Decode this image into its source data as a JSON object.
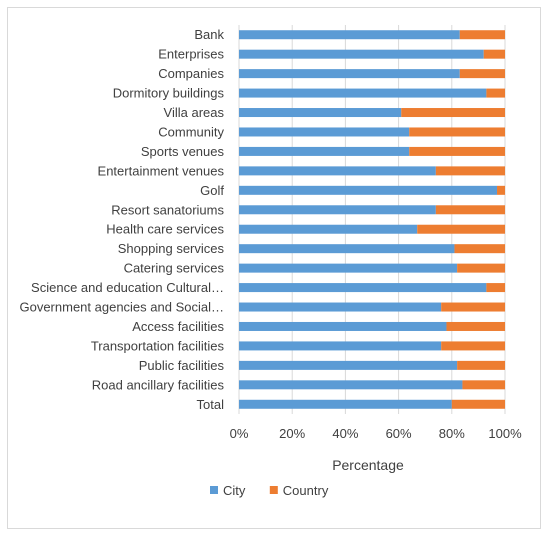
{
  "chart_data": {
    "type": "bar",
    "orientation": "horizontal",
    "stacked": true,
    "categories": [
      "Bank",
      "Enterprises",
      "Companies",
      "Dormitory buildings",
      "Villa areas",
      "Community",
      "Sports venues",
      "Entertainment venues",
      "Golf",
      "Resort sanatoriums",
      "Health care services",
      "Shopping services",
      "Catering services",
      "Science and education Cultural…",
      "Government agencies and Social…",
      "Access facilities",
      "Transportation facilities",
      "Public facilities",
      "Road ancillary facilities",
      "Total"
    ],
    "series": [
      {
        "name": "City",
        "color": "#5b9bd5",
        "values": [
          83,
          92,
          83,
          93,
          61,
          64,
          64,
          74,
          97,
          74,
          67,
          81,
          82,
          93,
          76,
          78,
          76,
          82,
          84,
          80
        ]
      },
      {
        "name": "Country",
        "color": "#ed7d31",
        "values": [
          17,
          8,
          17,
          7,
          39,
          36,
          36,
          26,
          3,
          26,
          33,
          19,
          18,
          7,
          24,
          22,
          24,
          18,
          16,
          20
        ]
      }
    ],
    "xlabel": "Percentage",
    "xlim": [
      0,
      100
    ],
    "xticks": [
      "0%",
      "20%",
      "40%",
      "60%",
      "80%",
      "100%"
    ],
    "grid": true,
    "legend_position": "bottom"
  }
}
